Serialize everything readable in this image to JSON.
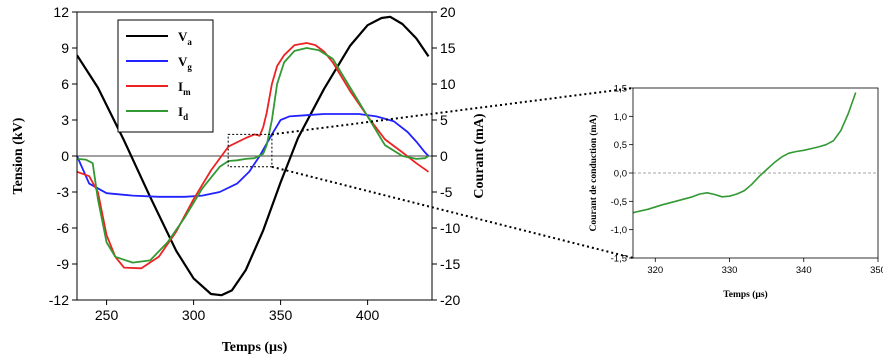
{
  "chart_data": [
    {
      "type": "line",
      "xlabel": "Temps (µs)",
      "ylabel": "Tension (kV)",
      "y2label": "Courant (mA)",
      "xlim": [
        233,
        437
      ],
      "xticks": [
        "250",
        "300",
        "350",
        "400"
      ],
      "ylim": [
        -12,
        12
      ],
      "yticks": [
        "-12",
        "-9",
        "-6",
        "-3",
        "0",
        "3",
        "6",
        "9",
        "12"
      ],
      "y2lim": [
        -20,
        20
      ],
      "y2ticks": [
        "-20",
        "-15",
        "-10",
        "-5",
        "0",
        "5",
        "10",
        "15",
        "20"
      ],
      "legend_position": "top-left",
      "series": [
        {
          "name": "V",
          "sub": "a",
          "color": "#000000",
          "axis": "left",
          "x": [
            233,
            245,
            260,
            275,
            290,
            300,
            310,
            316,
            322,
            330,
            340,
            350,
            360,
            375,
            390,
            400,
            408,
            413,
            420,
            428,
            435
          ],
          "y": [
            8.4,
            5.7,
            1.3,
            -3.4,
            -7.9,
            -10.2,
            -11.5,
            -11.6,
            -11.2,
            -9.5,
            -6.2,
            -2.2,
            1.5,
            5.6,
            9.2,
            10.9,
            11.5,
            11.6,
            11.0,
            9.8,
            8.3
          ]
        },
        {
          "name": "V",
          "sub": "g",
          "color": "#2222ff",
          "axis": "left",
          "x": [
            233,
            240,
            250,
            265,
            280,
            295,
            305,
            315,
            325,
            332,
            338,
            345,
            350,
            355,
            365,
            375,
            385,
            395,
            405,
            415,
            423,
            428,
            433,
            435
          ],
          "y": [
            0,
            -2.3,
            -3.1,
            -3.3,
            -3.4,
            -3.4,
            -3.3,
            -3.0,
            -2.3,
            -1.3,
            0.0,
            1.8,
            3.0,
            3.3,
            3.4,
            3.5,
            3.5,
            3.5,
            3.3,
            2.9,
            2.0,
            1.2,
            0.3,
            0
          ]
        },
        {
          "name": "I",
          "sub": "m",
          "color": "#ee2222",
          "axis": "right",
          "x": [
            233,
            240,
            245,
            250,
            255,
            260,
            270,
            280,
            290,
            300,
            310,
            320,
            330,
            335,
            338,
            340,
            342,
            345,
            348,
            352,
            358,
            365,
            370,
            375,
            380,
            390,
            400,
            410,
            420,
            428,
            435
          ],
          "y": [
            -2.2,
            -2.8,
            -5,
            -11,
            -14,
            -15.5,
            -15.6,
            -14,
            -10.5,
            -6,
            -2,
            1.3,
            2.5,
            3,
            2.8,
            4,
            6,
            10,
            12.5,
            14,
            15.4,
            15.7,
            15.4,
            14.5,
            13,
            9,
            5.5,
            2.3,
            0.5,
            -1,
            -2.2
          ]
        },
        {
          "name": "I",
          "sub": "d",
          "color": "#339933",
          "axis": "right",
          "x": [
            233,
            238,
            242,
            245,
            250,
            255,
            265,
            275,
            285,
            295,
            305,
            315,
            320,
            325,
            330,
            335,
            340,
            342,
            345,
            348,
            352,
            358,
            365,
            372,
            380,
            390,
            400,
            410,
            420,
            428,
            433,
            435
          ],
          "y": [
            -0.4,
            -0.5,
            -1,
            -6,
            -12,
            -14,
            -14.8,
            -14.5,
            -12,
            -8.5,
            -4.5,
            -1.5,
            -0.7,
            -0.6,
            -0.4,
            -0.3,
            0.3,
            1.5,
            5,
            10,
            13,
            14.6,
            15,
            14.7,
            13.5,
            9.5,
            5.5,
            1.5,
            0,
            -0.4,
            -0.3,
            0
          ]
        }
      ]
    },
    {
      "type": "line",
      "xlabel": "Temps (µs)",
      "ylabel": "Courant de conduction (mA)",
      "xlim": [
        317,
        350
      ],
      "xticks": [
        "320",
        "330",
        "340",
        "350"
      ],
      "ylim": [
        -1.5,
        1.5
      ],
      "yticks": [
        "-1,5",
        "-1,0",
        "-0,5",
        "0,0",
        "0,5",
        "1,0",
        "1,5"
      ],
      "zero_line": "dashed",
      "series": [
        {
          "color": "#339933",
          "x": [
            317,
            319,
            321,
            323,
            325,
            326,
            327,
            328,
            329,
            330,
            331,
            332,
            333,
            334,
            335,
            336,
            337,
            338,
            339,
            340,
            341,
            342,
            343,
            344,
            345,
            346,
            347
          ],
          "y": [
            -0.7,
            -0.64,
            -0.56,
            -0.49,
            -0.42,
            -0.37,
            -0.35,
            -0.38,
            -0.42,
            -0.41,
            -0.37,
            -0.31,
            -0.2,
            -0.06,
            0.06,
            0.18,
            0.28,
            0.35,
            0.38,
            0.4,
            0.43,
            0.46,
            0.5,
            0.57,
            0.75,
            1.05,
            1.42
          ]
        }
      ]
    }
  ]
}
